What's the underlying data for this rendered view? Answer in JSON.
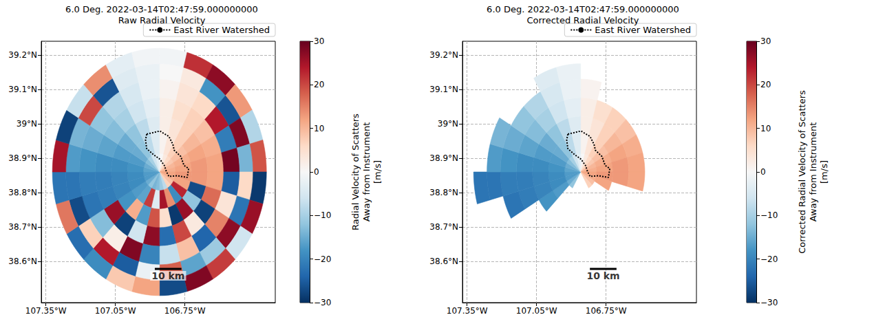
{
  "chart_data": [
    {
      "type": "heatmap",
      "title": "6.0 Deg. 2022-03-14T02:47:59.000000000",
      "subtitle": "Raw Radial Velocity",
      "xlim": [
        -107.37,
        -106.36
      ],
      "xticks": [
        {
          "value": -107.35,
          "label": "107.35°W"
        },
        {
          "value": -107.05,
          "label": "107.05°W"
        },
        {
          "value": -106.75,
          "label": "106.75°W"
        }
      ],
      "ylim": [
        38.48,
        39.24
      ],
      "yticks": [
        {
          "value": 38.6,
          "label": "38.6°N"
        },
        {
          "value": 38.7,
          "label": "38.7°N"
        },
        {
          "value": 38.8,
          "label": "38.8°N"
        },
        {
          "value": 38.9,
          "label": "38.9°N"
        },
        {
          "value": 39.0,
          "label": "39°N"
        },
        {
          "value": 39.1,
          "label": "39.1°N"
        },
        {
          "value": 39.2,
          "label": "39.2°N"
        }
      ],
      "grid": true,
      "legend": "upper right",
      "radar_location": [
        -106.86,
        38.86
      ],
      "azimuth_edges": [
        0,
        15,
        30,
        45,
        60,
        75,
        90,
        105,
        120,
        135,
        150,
        165,
        180,
        195,
        210,
        225,
        240,
        255,
        270,
        285,
        300,
        315,
        330,
        345,
        360
      ],
      "range_edges_km": [
        0,
        6,
        12,
        18,
        24,
        30,
        35,
        40
      ],
      "values": [
        [
          0,
          1,
          2,
          2,
          1,
          0,
          -1
        ],
        [
          3,
          4,
          4,
          5,
          4,
          3,
          22
        ],
        [
          6,
          7,
          7,
          7,
          6,
          -18,
          27
        ],
        [
          8,
          9,
          10,
          9,
          24,
          -26,
          13
        ],
        [
          10,
          11,
          12,
          11,
          -21,
          28,
          -9
        ],
        [
          11,
          12,
          13,
          12,
          29,
          -14,
          19
        ],
        [
          12,
          13,
          13,
          12,
          -25,
          6,
          -29
        ],
        [
          11,
          12,
          -27,
          17,
          4,
          -22,
          26
        ],
        [
          9,
          23,
          -12,
          -28,
          15,
          27,
          -6
        ],
        [
          7,
          -19,
          26,
          3,
          -24,
          -11,
          21
        ],
        [
          -8,
          14,
          -29,
          20,
          9,
          -16,
          28
        ],
        [
          -11,
          25,
          5,
          -23,
          -7,
          18,
          -27
        ],
        [
          -13,
          -4,
          19,
          27,
          -20,
          -2,
          12
        ],
        [
          -14,
          21,
          -17,
          -6,
          28,
          -25,
          8
        ],
        [
          -12,
          -16,
          11,
          -28,
          2,
          24,
          -19
        ],
        [
          -15,
          -17,
          -18,
          26,
          -13,
          7,
          -23
        ],
        [
          -17,
          -19,
          -20,
          -21,
          -22,
          -27,
          16
        ],
        [
          -17,
          -19,
          -20,
          -21,
          -21,
          -22,
          -22
        ],
        [
          -16,
          -18,
          -19,
          -19,
          -18,
          -17,
          25
        ],
        [
          -15,
          -17,
          -17,
          -16,
          -15,
          -14,
          -28
        ],
        [
          -13,
          -15,
          -15,
          -13,
          -12,
          20,
          -7
        ],
        [
          -10,
          -12,
          -12,
          -10,
          -9,
          -26,
          14
        ],
        [
          -6,
          -8,
          -8,
          -6,
          -5,
          -4,
          -3
        ],
        [
          -3,
          -4,
          -4,
          -3,
          -2,
          -2,
          -1
        ]
      ],
      "colorbar": {
        "label": "Radial Velocity of Scatters\nAway from Instrument\n[m/s]",
        "lim": [
          -30,
          30
        ],
        "ticks": [
          {
            "value": -30,
            "label": "−30"
          },
          {
            "value": -20,
            "label": "−20"
          },
          {
            "value": -10,
            "label": "−10"
          },
          0,
          10,
          20,
          30
        ]
      },
      "watershed": {
        "name": "East River Watershed",
        "color": "#000000",
        "line_style": "dotted",
        "lon": [
          -106.915,
          -106.858,
          -106.819,
          -106.802,
          -106.796,
          -106.768,
          -106.754,
          -106.734,
          -106.74,
          -106.782,
          -106.819,
          -106.83,
          -106.839,
          -106.858,
          -106.887,
          -106.915,
          -106.92,
          -106.915
        ],
        "lat": [
          38.97,
          38.979,
          38.963,
          38.94,
          38.923,
          38.905,
          38.879,
          38.87,
          38.844,
          38.849,
          38.847,
          38.861,
          38.879,
          38.897,
          38.911,
          38.928,
          38.953,
          38.97
        ]
      },
      "scale_bar": {
        "label": "10 km",
        "length_km": 10,
        "lon": -106.88,
        "lat": 38.578
      }
    },
    {
      "type": "heatmap",
      "title": "6.0 Deg. 2022-03-14T02:47:59.000000000",
      "subtitle": "Corrected Radial Velocity",
      "xlim": [
        -107.37,
        -106.36
      ],
      "xticks": [
        {
          "value": -107.35,
          "label": "107.35°W"
        },
        {
          "value": -107.05,
          "label": "107.05°W"
        },
        {
          "value": -106.75,
          "label": "106.75°W"
        }
      ],
      "ylim": [
        38.48,
        39.24
      ],
      "yticks": [
        {
          "value": 38.6,
          "label": "38.6°N"
        },
        {
          "value": 38.7,
          "label": "38.7°N"
        },
        {
          "value": 38.8,
          "label": "38.8°N"
        },
        {
          "value": 38.9,
          "label": "38.9°N"
        },
        {
          "value": 39.0,
          "label": "39°N"
        },
        {
          "value": 39.1,
          "label": "39.1°N"
        },
        {
          "value": 39.2,
          "label": "39.2°N"
        }
      ],
      "grid": true,
      "legend": "upper right",
      "radar_location": [
        -106.86,
        38.86
      ],
      "azimuth_edges": [
        0,
        15,
        30,
        45,
        60,
        75,
        90,
        105,
        120,
        135,
        150,
        165,
        180,
        195,
        210,
        225,
        240,
        255,
        270,
        285,
        300,
        315,
        330,
        345,
        360
      ],
      "range_edges_km": [
        0,
        6,
        12,
        18,
        24,
        30,
        35,
        40
      ],
      "values": [
        [
          0,
          1,
          2,
          2,
          1,
          null,
          null
        ],
        [
          3,
          4,
          4,
          5,
          null,
          null,
          null
        ],
        [
          6,
          7,
          7,
          7,
          null,
          null,
          null
        ],
        [
          8,
          9,
          10,
          9,
          null,
          null,
          null
        ],
        [
          10,
          11,
          12,
          11,
          null,
          null,
          null
        ],
        [
          11,
          12,
          13,
          12,
          null,
          null,
          null
        ],
        [
          12,
          13,
          13,
          12,
          null,
          null,
          null
        ],
        [
          11,
          12,
          null,
          null,
          null,
          null,
          null
        ],
        [
          9,
          null,
          null,
          null,
          null,
          null,
          null
        ],
        [
          7,
          null,
          null,
          null,
          null,
          null,
          null
        ],
        [
          null,
          null,
          null,
          null,
          null,
          null,
          null
        ],
        [
          null,
          null,
          null,
          null,
          null,
          null,
          null
        ],
        [
          null,
          null,
          null,
          null,
          null,
          null,
          null
        ],
        [
          null,
          null,
          null,
          null,
          null,
          null,
          null
        ],
        [
          -12,
          null,
          null,
          null,
          null,
          null,
          null
        ],
        [
          -15,
          -17,
          -18,
          null,
          null,
          null,
          null
        ],
        [
          -17,
          -19,
          -20,
          -21,
          -22,
          null,
          null
        ],
        [
          -17,
          -19,
          -20,
          -21,
          -21,
          -22,
          -22
        ],
        [
          -16,
          -18,
          -19,
          -19,
          -18,
          -17,
          null
        ],
        [
          -15,
          -17,
          -17,
          -16,
          -15,
          -14,
          null
        ],
        [
          -13,
          -15,
          -15,
          -13,
          -12,
          null,
          null
        ],
        [
          -10,
          -12,
          -12,
          -10,
          -9,
          null,
          null
        ],
        [
          -6,
          -8,
          -8,
          -6,
          -5,
          -4,
          null
        ],
        [
          -3,
          -4,
          -4,
          -3,
          -2,
          -2,
          null
        ]
      ],
      "colorbar": {
        "label": "Corrected Radial Velocity of Scatters\nAway from Instrument\n[m/s]",
        "lim": [
          -30,
          30
        ],
        "ticks": [
          {
            "value": -30,
            "label": "−30"
          },
          {
            "value": -20,
            "label": "−20"
          },
          {
            "value": -10,
            "label": "−10"
          },
          0,
          10,
          20,
          30
        ]
      },
      "watershed": {
        "name": "East River Watershed",
        "color": "#000000",
        "line_style": "dotted",
        "lon": [
          -106.915,
          -106.858,
          -106.819,
          -106.802,
          -106.796,
          -106.768,
          -106.754,
          -106.734,
          -106.74,
          -106.782,
          -106.819,
          -106.83,
          -106.839,
          -106.858,
          -106.887,
          -106.915,
          -106.92,
          -106.915
        ],
        "lat": [
          38.97,
          38.979,
          38.963,
          38.94,
          38.923,
          38.905,
          38.879,
          38.87,
          38.844,
          38.849,
          38.847,
          38.861,
          38.879,
          38.897,
          38.911,
          38.928,
          38.953,
          38.97
        ]
      },
      "scale_bar": {
        "label": "10 km",
        "length_km": 10,
        "lon": -106.82,
        "lat": 38.578
      }
    }
  ]
}
